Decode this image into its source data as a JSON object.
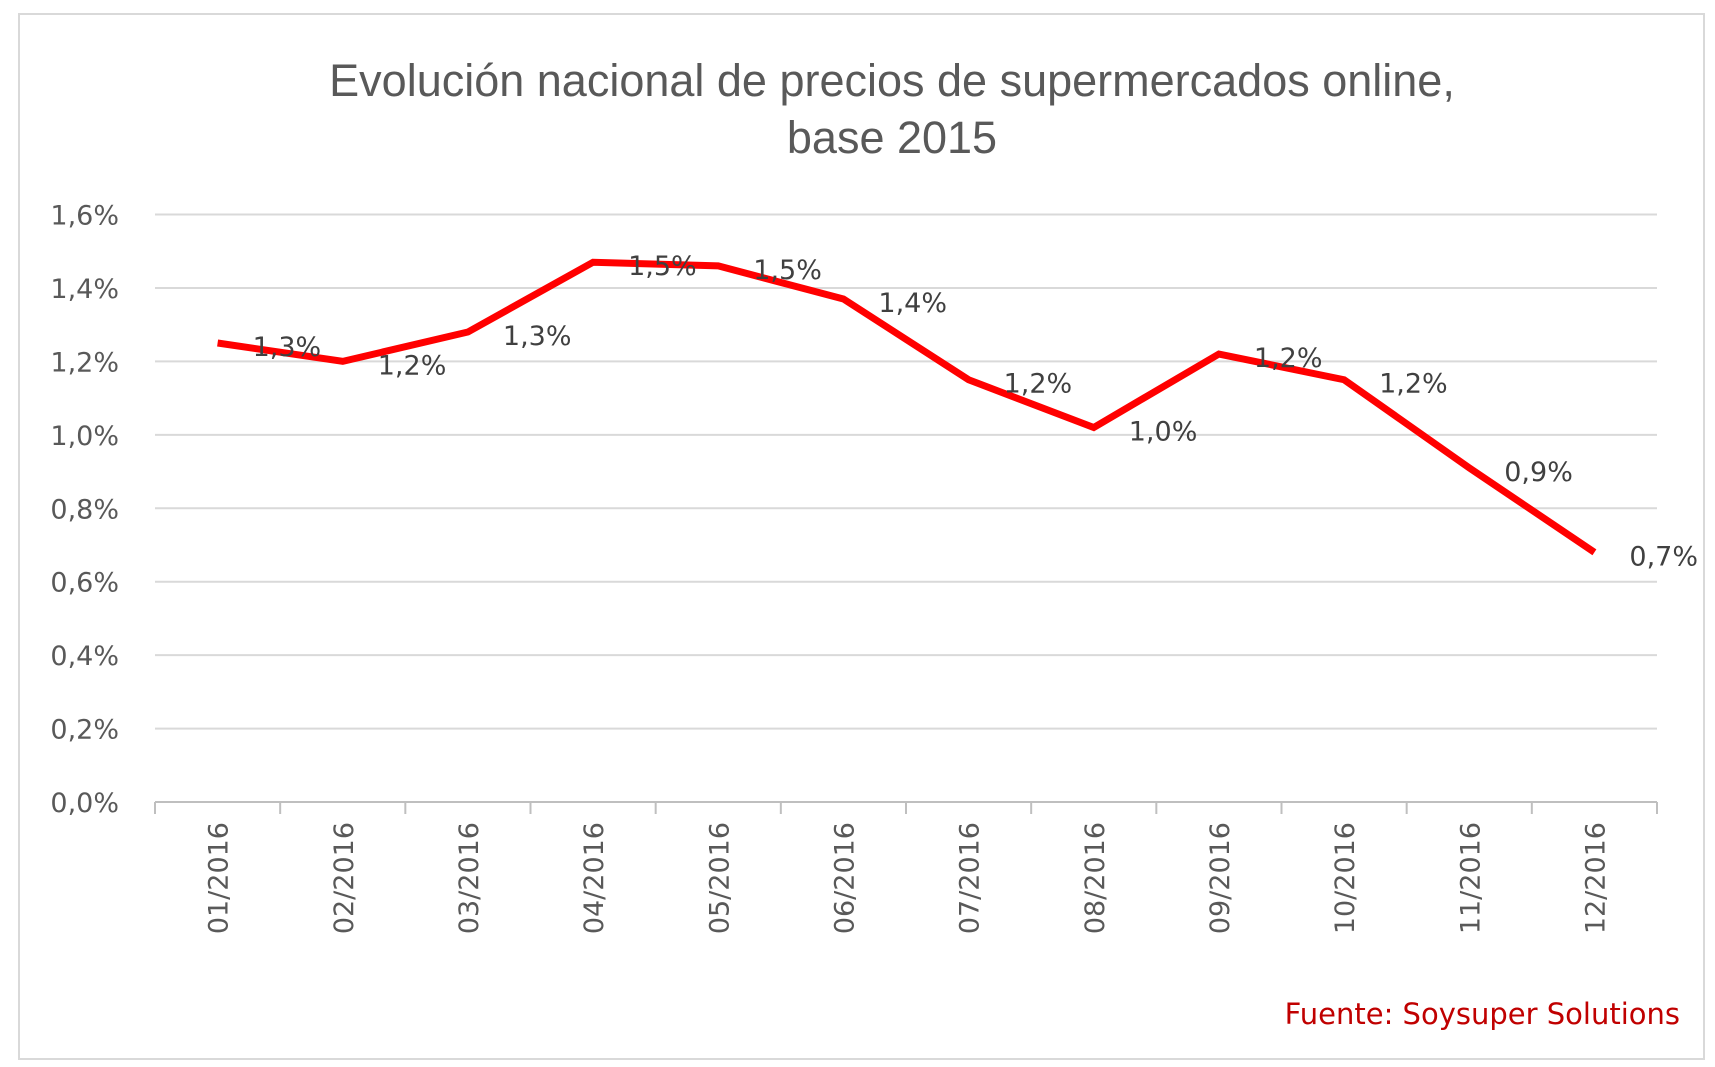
{
  "chart_data": {
    "type": "line",
    "title": "Evolución nacional de precios de supermercados online, base 2015",
    "title_lines": [
      "Evolución nacional de precios de supermercados online,",
      "base 2015"
    ],
    "xlabel": "",
    "ylabel": "",
    "categories": [
      "01/2016",
      "02/2016",
      "03/2016",
      "04/2016",
      "05/2016",
      "06/2016",
      "07/2016",
      "08/2016",
      "09/2016",
      "10/2016",
      "11/2016",
      "12/2016"
    ],
    "series": [
      {
        "values": [
          1.25,
          1.2,
          1.28,
          1.47,
          1.46,
          1.37,
          1.15,
          1.02,
          1.22,
          1.15,
          0.91,
          0.68
        ],
        "data_labels": [
          "1,3%",
          "1,2%",
          "1,3%",
          "1,5%",
          "1,5%",
          "1,4%",
          "1,2%",
          "1,0%",
          "1,2%",
          "1,2%",
          "0,9%",
          "0,7%"
        ],
        "color": "#ff0000"
      }
    ],
    "ylim": [
      0,
      1.6
    ],
    "yticks": [
      0,
      0.2,
      0.4,
      0.6,
      0.8,
      1.0,
      1.2,
      1.4,
      1.6
    ],
    "ytick_labels": [
      "0,0%",
      "0,2%",
      "0,4%",
      "0,6%",
      "0,8%",
      "1,0%",
      "1,2%",
      "1,4%",
      "1,6%"
    ],
    "grid": true,
    "legend": "none",
    "source": "Fuente: Soysuper Solutions"
  }
}
